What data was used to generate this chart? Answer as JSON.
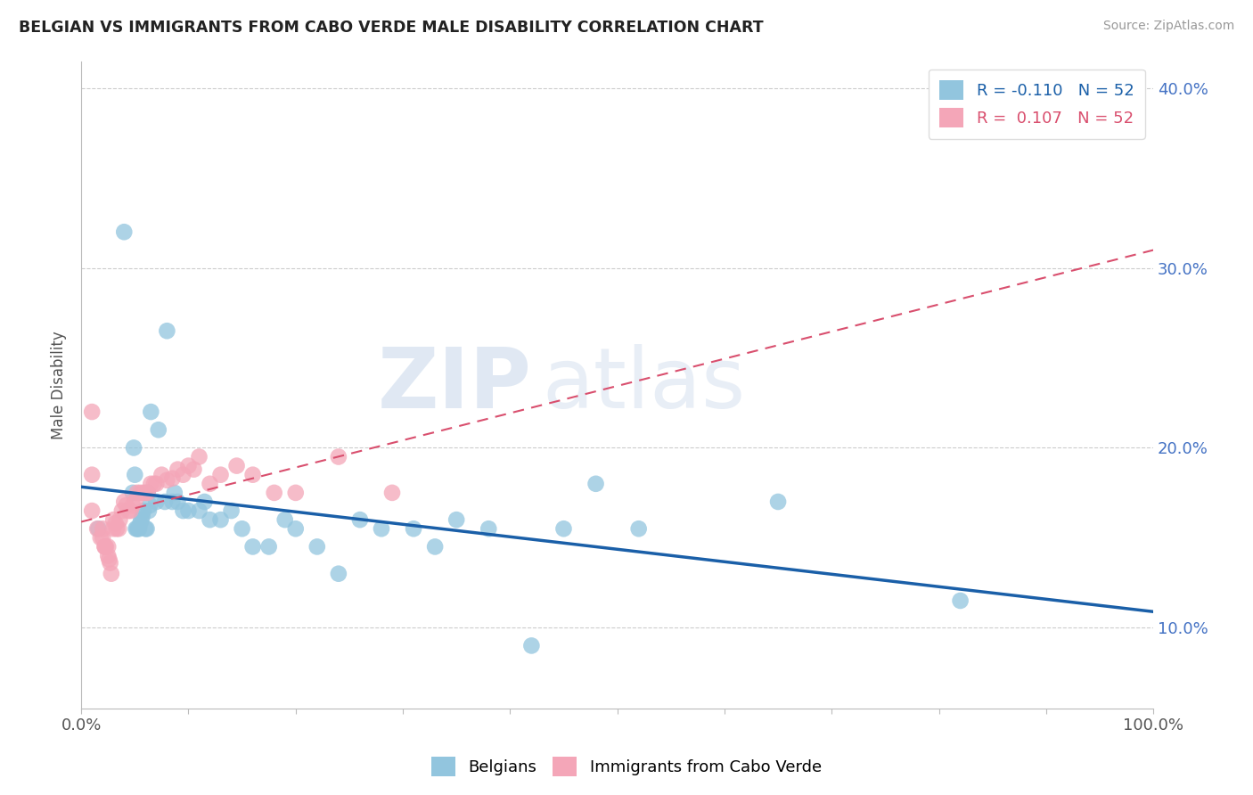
{
  "title": "BELGIAN VS IMMIGRANTS FROM CABO VERDE MALE DISABILITY CORRELATION CHART",
  "source": "Source: ZipAtlas.com",
  "ylabel": "Male Disability",
  "legend_belgian": "Belgians",
  "legend_cabo_verde": "Immigrants from Cabo Verde",
  "r_belgian": -0.11,
  "r_cabo_verde": 0.107,
  "n_belgian": 52,
  "n_cabo_verde": 52,
  "color_belgian": "#92c5de",
  "color_cabo_verde": "#f4a6b8",
  "line_color_belgian": "#1a5fa8",
  "line_color_cabo_verde": "#d94f6e",
  "watermark_zip": "ZIP",
  "watermark_atlas": "atlas",
  "background_color": "#ffffff",
  "grid_color": "#cccccc",
  "xlim": [
    0.0,
    1.0
  ],
  "ylim": [
    0.055,
    0.415
  ],
  "ytick_vals": [
    0.1,
    0.2,
    0.3,
    0.4
  ],
  "ytick_labels": [
    "10.0%",
    "20.0%",
    "30.0%",
    "40.0%"
  ],
  "belgian_x": [
    0.016,
    0.04,
    0.048,
    0.049,
    0.05,
    0.051,
    0.052,
    0.053,
    0.054,
    0.055,
    0.056,
    0.057,
    0.058,
    0.06,
    0.061,
    0.062,
    0.063,
    0.064,
    0.065,
    0.07,
    0.072,
    0.078,
    0.08,
    0.085,
    0.087,
    0.09,
    0.095,
    0.1,
    0.11,
    0.115,
    0.12,
    0.13,
    0.14,
    0.15,
    0.16,
    0.175,
    0.19,
    0.2,
    0.22,
    0.24,
    0.26,
    0.28,
    0.31,
    0.33,
    0.35,
    0.38,
    0.42,
    0.45,
    0.48,
    0.52,
    0.65,
    0.82
  ],
  "belgian_y": [
    0.155,
    0.32,
    0.175,
    0.2,
    0.185,
    0.155,
    0.155,
    0.155,
    0.155,
    0.158,
    0.16,
    0.162,
    0.165,
    0.155,
    0.155,
    0.175,
    0.165,
    0.168,
    0.22,
    0.17,
    0.21,
    0.17,
    0.265,
    0.17,
    0.175,
    0.17,
    0.165,
    0.165,
    0.165,
    0.17,
    0.16,
    0.16,
    0.165,
    0.155,
    0.145,
    0.145,
    0.16,
    0.155,
    0.145,
    0.13,
    0.16,
    0.155,
    0.155,
    0.145,
    0.16,
    0.155,
    0.09,
    0.155,
    0.18,
    0.155,
    0.17,
    0.115
  ],
  "cabo_x": [
    0.01,
    0.01,
    0.01,
    0.015,
    0.018,
    0.02,
    0.02,
    0.022,
    0.022,
    0.023,
    0.025,
    0.025,
    0.026,
    0.027,
    0.028,
    0.03,
    0.03,
    0.032,
    0.033,
    0.035,
    0.036,
    0.038,
    0.04,
    0.042,
    0.044,
    0.046,
    0.048,
    0.05,
    0.052,
    0.055,
    0.058,
    0.06,
    0.062,
    0.065,
    0.068,
    0.07,
    0.075,
    0.08,
    0.085,
    0.09,
    0.095,
    0.1,
    0.105,
    0.11,
    0.12,
    0.13,
    0.145,
    0.16,
    0.18,
    0.2,
    0.24,
    0.29
  ],
  "cabo_y": [
    0.22,
    0.185,
    0.165,
    0.155,
    0.15,
    0.155,
    0.15,
    0.145,
    0.145,
    0.145,
    0.145,
    0.14,
    0.138,
    0.136,
    0.13,
    0.16,
    0.155,
    0.158,
    0.155,
    0.155,
    0.16,
    0.165,
    0.17,
    0.168,
    0.165,
    0.165,
    0.168,
    0.17,
    0.175,
    0.175,
    0.175,
    0.175,
    0.175,
    0.18,
    0.18,
    0.18,
    0.185,
    0.182,
    0.183,
    0.188,
    0.185,
    0.19,
    0.188,
    0.195,
    0.18,
    0.185,
    0.19,
    0.185,
    0.175,
    0.175,
    0.195,
    0.175
  ]
}
